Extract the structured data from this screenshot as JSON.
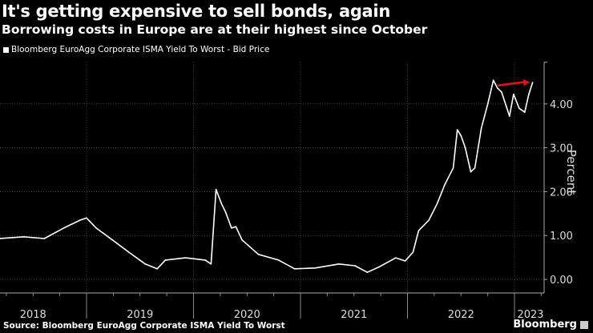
{
  "title": "It's getting expensive to sell bonds, again",
  "subtitle": "Borrowing costs in Europe are at their highest since October",
  "source": "Source: Bloomberg EuroAgg Corporate ISMA Yield To Worst",
  "brand": "Bloomberg",
  "chart_data": {
    "type": "line",
    "title": "It's getting expensive to sell bonds, again",
    "subtitle": "Borrowing costs in Europe are at their highest since October",
    "ylabel": "Percent",
    "xlabel": "",
    "ylim": [
      -0.3,
      4.95
    ],
    "yticks": [
      "0.00",
      "1.00",
      "2.00",
      "3.00",
      "4.00"
    ],
    "xticks": [
      "2018",
      "2019",
      "2020",
      "2021",
      "2022",
      "2023"
    ],
    "grid": true,
    "legend_position": "top-left",
    "line_color": "#ffffff",
    "annotation": {
      "type": "arrow",
      "color": "#e8101a",
      "from": [
        "2022-11-04",
        4.42
      ],
      "to": [
        "2023-02-22",
        4.5
      ]
    },
    "series": [
      {
        "name": "Bloomberg EuroAgg Corporate ISMA Yield To Worst - Bid Price",
        "points": [
          [
            "2018-03-10",
            0.93
          ],
          [
            "2018-06-01",
            0.97
          ],
          [
            "2018-08-10",
            0.93
          ],
          [
            "2018-10-15",
            1.17
          ],
          [
            "2018-12-10",
            1.35
          ],
          [
            "2019-01-01",
            1.4
          ],
          [
            "2019-02-03",
            1.17
          ],
          [
            "2019-03-30",
            0.9
          ],
          [
            "2019-05-25",
            0.62
          ],
          [
            "2019-07-20",
            0.35
          ],
          [
            "2019-08-30",
            0.24
          ],
          [
            "2019-09-27",
            0.44
          ],
          [
            "2019-12-05",
            0.49
          ],
          [
            "2020-02-10",
            0.44
          ],
          [
            "2020-03-01",
            0.35
          ],
          [
            "2020-03-18",
            2.05
          ],
          [
            "2020-04-06",
            1.72
          ],
          [
            "2020-04-20",
            1.53
          ],
          [
            "2020-05-10",
            1.17
          ],
          [
            "2020-05-25",
            1.2
          ],
          [
            "2020-06-15",
            0.9
          ],
          [
            "2020-08-10",
            0.57
          ],
          [
            "2020-10-18",
            0.44
          ],
          [
            "2020-12-12",
            0.24
          ],
          [
            "2021-02-20",
            0.26
          ],
          [
            "2021-05-12",
            0.35
          ],
          [
            "2021-07-06",
            0.31
          ],
          [
            "2021-08-17",
            0.16
          ],
          [
            "2021-09-28",
            0.29
          ],
          [
            "2021-11-22",
            0.49
          ],
          [
            "2021-12-24",
            0.42
          ],
          [
            "2022-01-20",
            0.62
          ],
          [
            "2022-02-08",
            1.11
          ],
          [
            "2022-03-15",
            1.35
          ],
          [
            "2022-04-12",
            1.72
          ],
          [
            "2022-05-09",
            2.17
          ],
          [
            "2022-06-06",
            2.54
          ],
          [
            "2022-06-20",
            3.41
          ],
          [
            "2022-07-03",
            3.27
          ],
          [
            "2022-07-17",
            3.0
          ],
          [
            "2022-08-05",
            2.45
          ],
          [
            "2022-08-19",
            2.54
          ],
          [
            "2022-09-10",
            3.45
          ],
          [
            "2022-10-02",
            4.0
          ],
          [
            "2022-10-21",
            4.54
          ],
          [
            "2022-11-04",
            4.36
          ],
          [
            "2022-11-18",
            4.27
          ],
          [
            "2022-12-15",
            3.72
          ],
          [
            "2022-12-29",
            4.22
          ],
          [
            "2023-01-17",
            3.9
          ],
          [
            "2023-02-05",
            3.81
          ],
          [
            "2023-02-19",
            4.22
          ],
          [
            "2023-03-04",
            4.49
          ]
        ]
      }
    ]
  }
}
